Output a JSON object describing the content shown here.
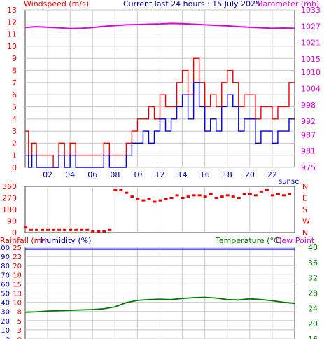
{
  "header": {
    "left_label": "Windspeed (m/s)",
    "center_label": "Current last 24 hours : 15 July 2025",
    "right_label": "Barometer (mb)"
  },
  "colors": {
    "wind_avg": "#0000dd",
    "wind_gust": "#ee0000",
    "barometer": "#dd00dd",
    "direction": "#ee0000",
    "rain": "#ee0000",
    "humidity": "#0000cc",
    "temperature": "#007700",
    "dew_point": "#cc00cc",
    "grid": "#c8c8c8"
  },
  "chart_data": [
    {
      "type": "line",
      "title": "Windspeed / Barometer",
      "left_axis": {
        "label": "Windspeed (m/s)",
        "ticks": [
          "0",
          "1",
          "2",
          "3",
          "4",
          "5",
          "6",
          "7",
          "8",
          "9",
          "10",
          "11",
          "12",
          "13"
        ],
        "ylim": [
          0,
          13
        ]
      },
      "right_axis": {
        "label": "Barometer (mb)",
        "ticks": [
          "975",
          "981",
          "987",
          "992",
          "998",
          "1004",
          "1010",
          "1015",
          "1021",
          "1027",
          "1033"
        ],
        "ylim": [
          975,
          1033
        ]
      },
      "x_ticks": [
        "02",
        "04",
        "06",
        "08",
        "10",
        "12",
        "14",
        "16",
        "18",
        "20",
        "22"
      ],
      "x_range_hours": [
        0,
        24
      ],
      "annotation": "sunse",
      "series": [
        {
          "name": "Wind speed",
          "x": [
            0,
            0.3,
            0.6,
            1,
            1.5,
            2,
            2.5,
            3,
            3.5,
            4,
            4.5,
            5,
            5.5,
            6,
            6.5,
            7,
            7.5,
            8,
            8.5,
            9,
            9.5,
            10,
            10.5,
            11,
            11.5,
            12,
            12.5,
            13,
            13.5,
            14,
            14.5,
            15,
            15.5,
            16,
            16.5,
            17,
            17.5,
            18,
            18.5,
            19,
            19.5,
            20,
            20.5,
            21,
            21.5,
            22,
            22.5,
            23,
            23.5
          ],
          "values": [
            1,
            0,
            1,
            0,
            0,
            0,
            0,
            1,
            0,
            1,
            0,
            0,
            0,
            0,
            0,
            1,
            0,
            0,
            0,
            1,
            2,
            2,
            3,
            2,
            3,
            4,
            3,
            4,
            5,
            6,
            4,
            7,
            5,
            3,
            4,
            3,
            5,
            6,
            5,
            3,
            4,
            4,
            2,
            3,
            3,
            2,
            3,
            3,
            4
          ]
        },
        {
          "name": "Wind gust",
          "x": [
            0,
            0.3,
            0.6,
            1,
            1.5,
            2,
            2.5,
            3,
            3.5,
            4,
            4.5,
            5,
            5.5,
            6,
            6.5,
            7,
            7.5,
            8,
            8.5,
            9,
            9.5,
            10,
            10.5,
            11,
            11.5,
            12,
            12.5,
            13,
            13.5,
            14,
            14.5,
            15,
            15.5,
            16,
            16.5,
            17,
            17.5,
            18,
            18.5,
            19,
            19.5,
            20,
            20.5,
            21,
            21.5,
            22,
            22.5,
            23,
            23.5
          ],
          "values": [
            3,
            1,
            2,
            1,
            1,
            1,
            0,
            2,
            1,
            2,
            1,
            1,
            1,
            1,
            1,
            2,
            1,
            1,
            1,
            2,
            3,
            4,
            4,
            5,
            4,
            6,
            5,
            5,
            7,
            8,
            6,
            9,
            7,
            5,
            6,
            5,
            7,
            8,
            7,
            5,
            6,
            6,
            4,
            5,
            5,
            4,
            5,
            5,
            7
          ]
        },
        {
          "name": "Barometer",
          "axis": "right",
          "x": [
            0,
            1,
            2,
            3,
            4,
            5,
            6,
            7,
            8,
            9,
            10,
            11,
            12,
            13,
            14,
            15,
            16,
            17,
            18,
            19,
            20,
            21,
            22,
            23,
            24
          ],
          "values": [
            1026.5,
            1026.8,
            1026.6,
            1026.4,
            1026.1,
            1026.2,
            1026.5,
            1026.9,
            1027.2,
            1027.5,
            1027.6,
            1027.7,
            1027.8,
            1028.0,
            1027.9,
            1027.7,
            1027.5,
            1027.3,
            1027.1,
            1026.8,
            1026.6,
            1026.4,
            1026.2,
            1026.3,
            1026.2
          ]
        }
      ]
    },
    {
      "type": "scatter",
      "title": "Wind direction",
      "left_axis": {
        "ticks": [
          "0",
          "90",
          "180",
          "270",
          "360"
        ],
        "ylim": [
          0,
          360
        ]
      },
      "right_axis": {
        "ticks": [
          "N",
          "W",
          "S",
          "E",
          "N"
        ]
      },
      "x_range_hours": [
        0,
        24
      ],
      "series": [
        {
          "name": "Direction",
          "x": [
            0,
            0.5,
            1,
            1.5,
            2,
            2.5,
            3,
            3.5,
            4,
            4.5,
            5,
            5.5,
            6,
            6.5,
            7,
            7.5,
            8,
            8.5,
            9,
            9.5,
            10,
            10.5,
            11,
            11.5,
            12,
            12.5,
            13,
            13.5,
            14,
            14.5,
            15,
            15.5,
            16,
            16.5,
            17,
            17.5,
            18,
            18.5,
            19,
            19.5,
            20,
            20.5,
            21,
            21.5,
            22,
            22.5,
            23,
            23.5
          ],
          "values": [
            40,
            20,
            20,
            20,
            20,
            20,
            20,
            20,
            20,
            20,
            20,
            20,
            10,
            10,
            10,
            20,
            330,
            330,
            310,
            280,
            260,
            250,
            260,
            240,
            250,
            260,
            270,
            290,
            270,
            280,
            290,
            290,
            280,
            300,
            270,
            280,
            290,
            280,
            270,
            300,
            300,
            290,
            320,
            330,
            290,
            300,
            290,
            300
          ]
        }
      ]
    },
    {
      "type": "line",
      "title": "Rainfall / Humidity / Temperature",
      "header_left_a": "Rainfall (mm",
      "header_left_b": "Humidity (%)",
      "header_right_a": "Temperature (°C)",
      "header_right_b": "Dew Point",
      "left_axis_humidity": {
        "ticks": [
          "0",
          "10",
          "20",
          "30",
          "40",
          "50",
          "60",
          "70",
          "80",
          "90",
          "100"
        ],
        "ylim": [
          0,
          100
        ]
      },
      "left_axis_rain": {
        "ticks": [
          "0",
          "3",
          "5",
          "8",
          "10",
          "13",
          "15",
          "18",
          "20",
          "23",
          "25"
        ]
      },
      "right_axis_temperature": {
        "ticks": [
          "16",
          "20",
          "24",
          "28",
          "32",
          "36",
          "40"
        ],
        "ylim": [
          16,
          40
        ]
      },
      "x_range_hours": [
        0,
        24
      ],
      "series": [
        {
          "name": "Humidity",
          "x": [
            0,
            24
          ],
          "values": [
            98,
            98
          ]
        },
        {
          "name": "Temperature",
          "axis": "right",
          "x": [
            0,
            1,
            2,
            3,
            4,
            5,
            6,
            7,
            8,
            9,
            10,
            11,
            12,
            13,
            14,
            15,
            16,
            17,
            18,
            19,
            20,
            21,
            22,
            23,
            24
          ],
          "values": [
            23.0,
            23.1,
            23.3,
            23.4,
            23.5,
            23.6,
            23.7,
            23.9,
            24.4,
            25.5,
            26.1,
            26.3,
            26.4,
            26.3,
            26.6,
            26.8,
            26.9,
            26.7,
            26.3,
            26.2,
            26.5,
            26.3,
            26.0,
            25.6,
            25.3
          ]
        }
      ]
    }
  ]
}
